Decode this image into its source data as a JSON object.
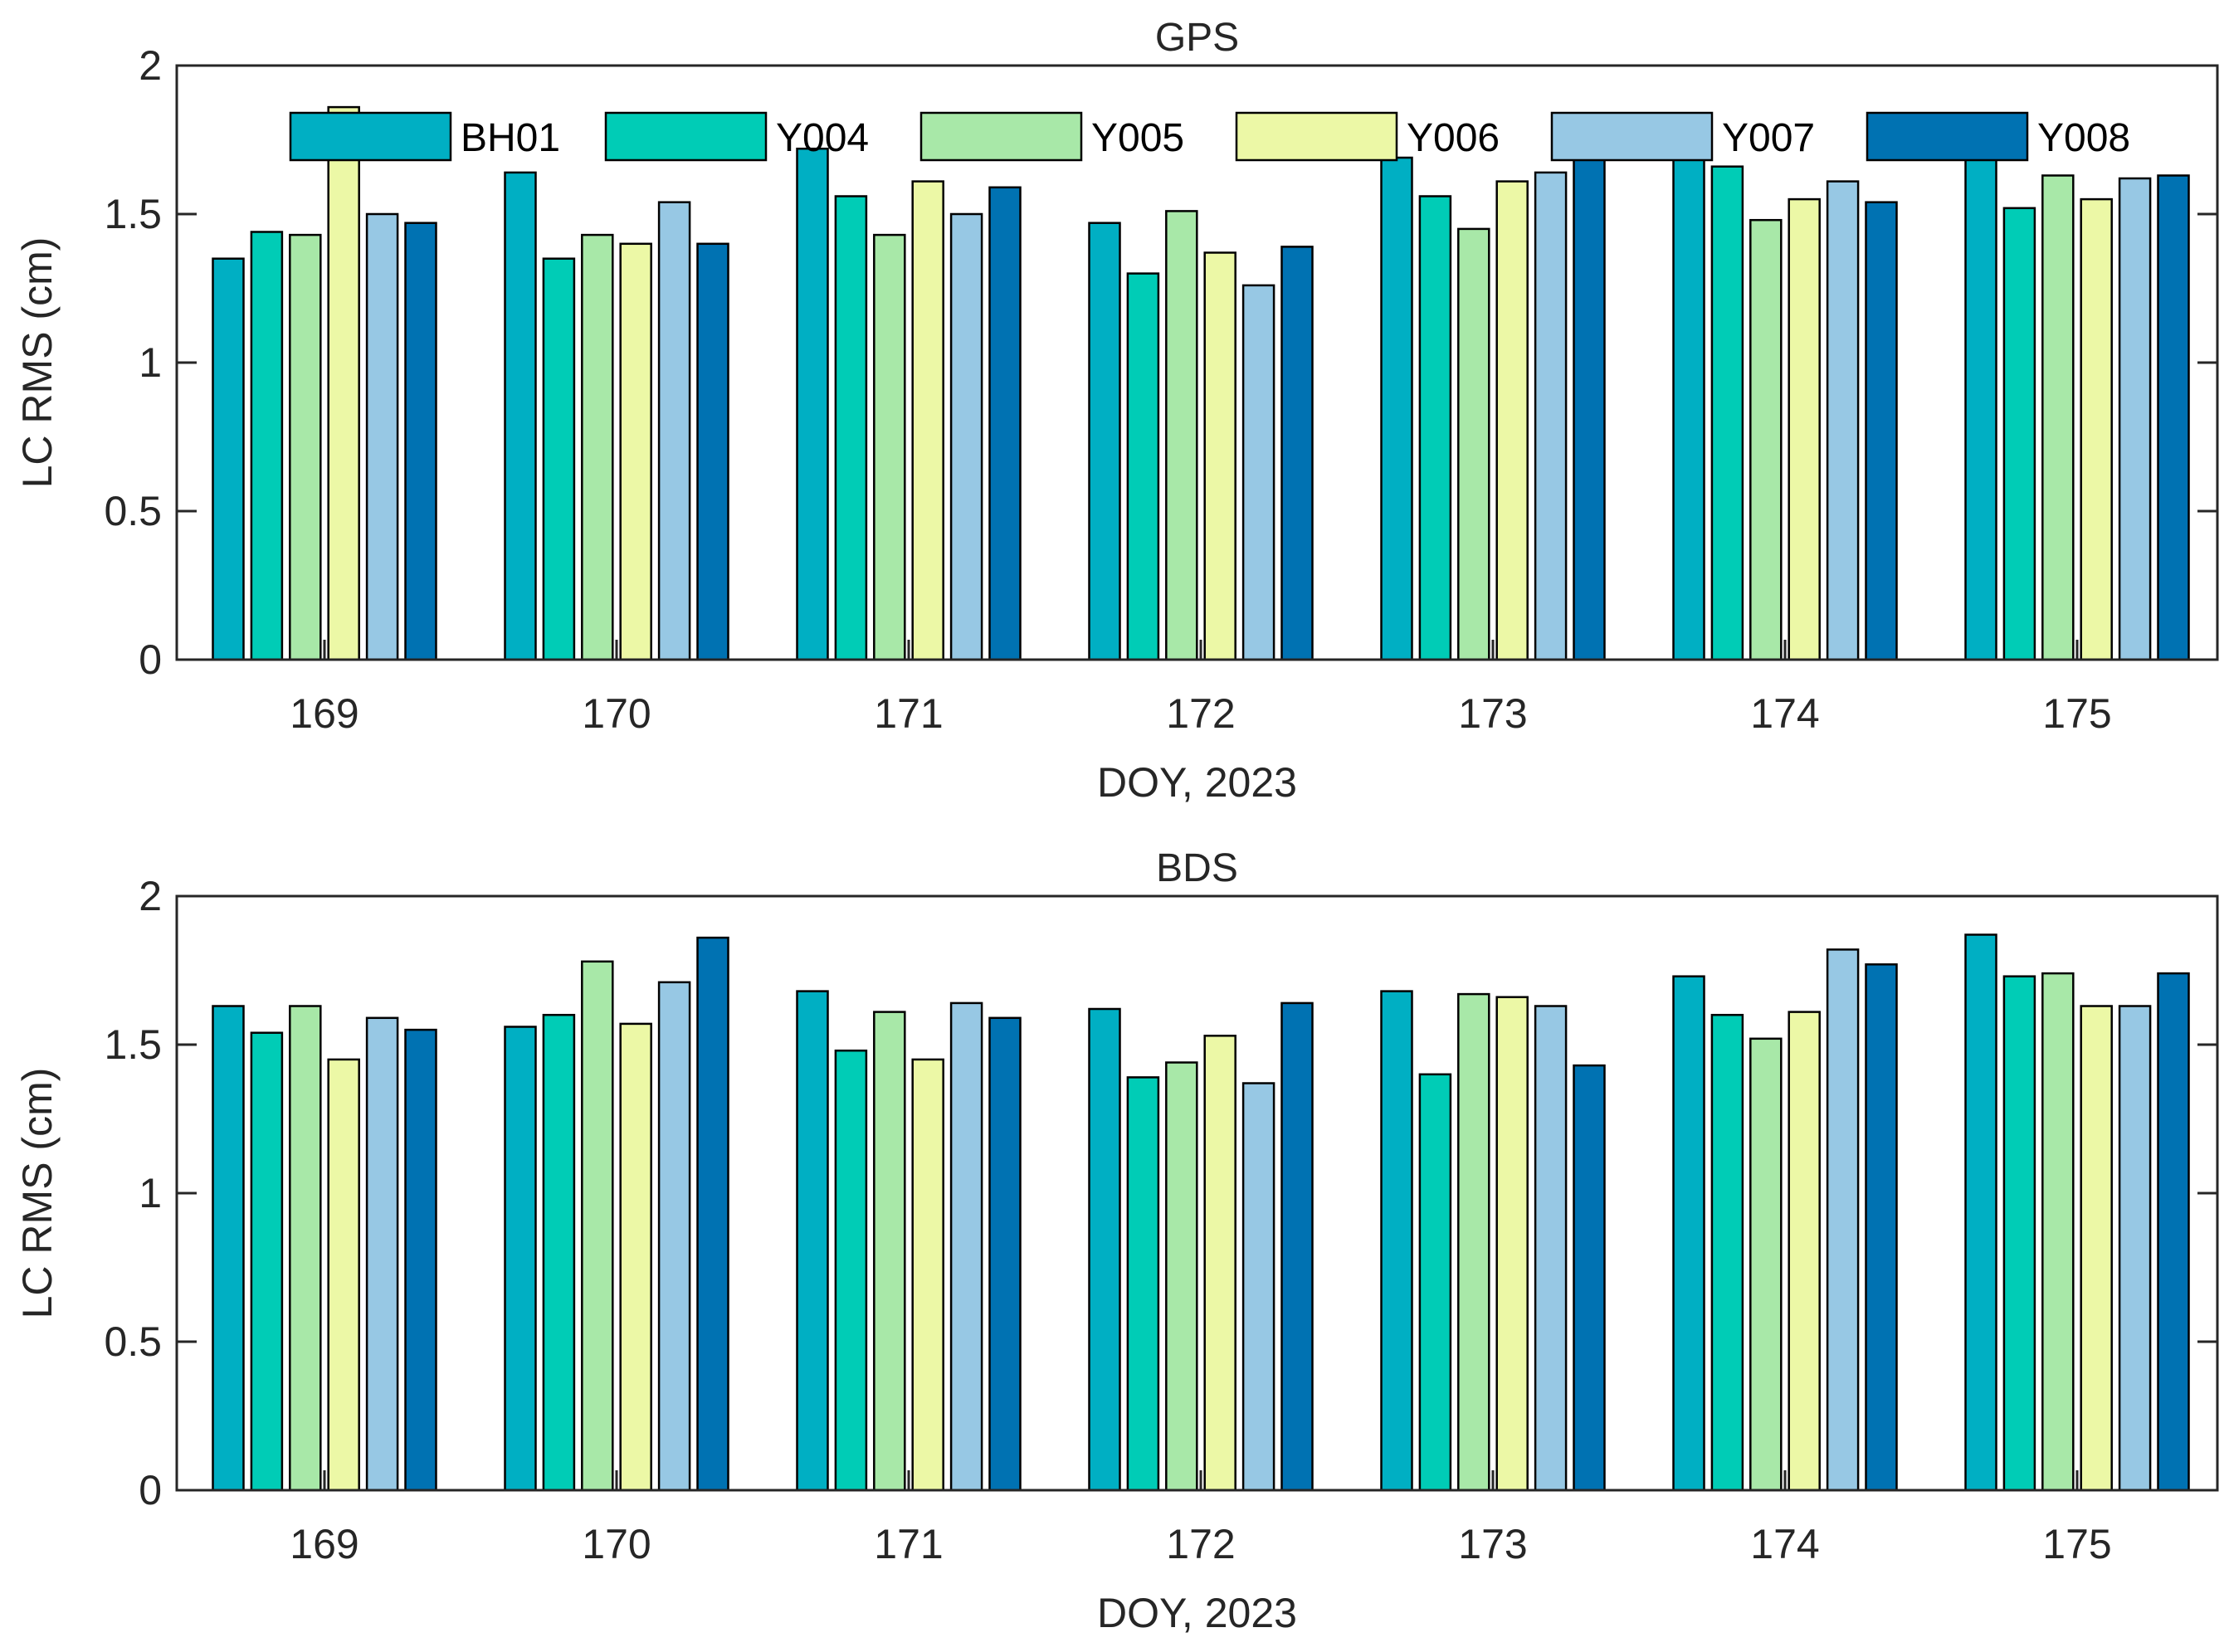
{
  "chart_data": [
    {
      "type": "bar",
      "title": "GPS",
      "xlabel": "DOY, 2023",
      "ylabel": "LC RMS (cm)",
      "ylim": [
        0,
        2
      ],
      "yticks": [
        "0",
        "0.5",
        "1",
        "1.5",
        "2"
      ],
      "categories": [
        "169",
        "170",
        "171",
        "172",
        "173",
        "174",
        "175"
      ],
      "legend": {
        "placement": "top",
        "orientation": "horizontal"
      },
      "series": [
        {
          "name": "BH01",
          "color": "#00AFC3",
          "values": [
            1.35,
            1.64,
            1.72,
            1.47,
            1.69,
            1.69,
            1.69
          ]
        },
        {
          "name": "Y004",
          "color": "#00CCB6",
          "values": [
            1.44,
            1.35,
            1.56,
            1.3,
            1.56,
            1.66,
            1.52
          ]
        },
        {
          "name": "Y005",
          "color": "#A8E8A8",
          "values": [
            1.43,
            1.43,
            1.43,
            1.51,
            1.45,
            1.48,
            1.63
          ]
        },
        {
          "name": "Y006",
          "color": "#ECF8A6",
          "values": [
            1.86,
            1.4,
            1.61,
            1.37,
            1.61,
            1.55,
            1.55
          ]
        },
        {
          "name": "Y007",
          "color": "#97C8E4",
          "values": [
            1.5,
            1.54,
            1.5,
            1.26,
            1.64,
            1.61,
            1.62
          ]
        },
        {
          "name": "Y008",
          "color": "#0072B2",
          "values": [
            1.47,
            1.4,
            1.59,
            1.39,
            1.69,
            1.54,
            1.63
          ]
        }
      ]
    },
    {
      "type": "bar",
      "title": "BDS",
      "xlabel": "DOY, 2023",
      "ylabel": "LC RMS (cm)",
      "ylim": [
        0,
        2
      ],
      "yticks": [
        "0",
        "0.5",
        "1",
        "1.5",
        "2"
      ],
      "categories": [
        "169",
        "170",
        "171",
        "172",
        "173",
        "174",
        "175"
      ],
      "series": [
        {
          "name": "BH01",
          "color": "#00AFC3",
          "values": [
            1.63,
            1.56,
            1.68,
            1.62,
            1.68,
            1.73,
            1.87
          ]
        },
        {
          "name": "Y004",
          "color": "#00CCB6",
          "values": [
            1.54,
            1.6,
            1.48,
            1.39,
            1.4,
            1.6,
            1.73
          ]
        },
        {
          "name": "Y005",
          "color": "#A8E8A8",
          "values": [
            1.63,
            1.78,
            1.61,
            1.44,
            1.67,
            1.52,
            1.74
          ]
        },
        {
          "name": "Y006",
          "color": "#ECF8A6",
          "values": [
            1.45,
            1.57,
            1.45,
            1.53,
            1.66,
            1.61,
            1.63
          ]
        },
        {
          "name": "Y007",
          "color": "#97C8E4",
          "values": [
            1.59,
            1.71,
            1.64,
            1.37,
            1.63,
            1.82,
            1.63
          ]
        },
        {
          "name": "Y008",
          "color": "#0072B2",
          "values": [
            1.55,
            1.86,
            1.59,
            1.64,
            1.43,
            1.77,
            1.74
          ]
        }
      ]
    }
  ]
}
